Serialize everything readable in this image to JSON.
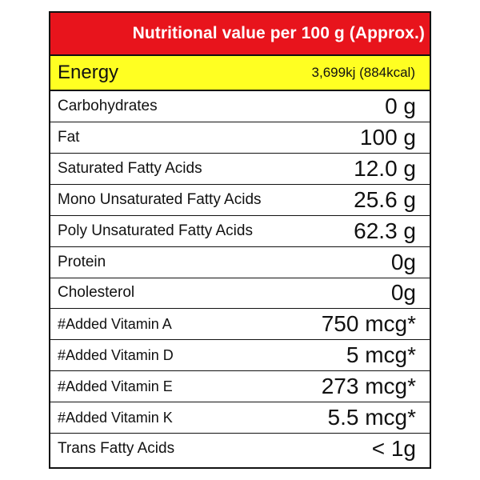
{
  "header": {
    "title": "Nutritional value per 100 g (Approx.)"
  },
  "energy": {
    "label": "Energy",
    "value": "3,699kj (884kcal)"
  },
  "rows": [
    {
      "label": "Carbohydrates",
      "value": "0 g"
    },
    {
      "label": "Fat",
      "value": "100 g"
    },
    {
      "label": "Saturated Fatty Acids",
      "value": "12.0 g"
    },
    {
      "label": "Mono Unsaturated Fatty Acids",
      "value": "25.6 g"
    },
    {
      "label": "Poly Unsaturated Fatty Acids",
      "value": "62.3 g"
    },
    {
      "label": "Protein",
      "value": "0g"
    },
    {
      "label": "Cholesterol",
      "value": "0g"
    },
    {
      "label": "#Added Vitamin A",
      "value": "750 mcg*"
    },
    {
      "label": "#Added Vitamin D",
      "value": "5 mcg*"
    },
    {
      "label": "#Added Vitamin E",
      "value": "273 mcg*"
    },
    {
      "label": "#Added Vitamin K",
      "value": "5.5 mcg*"
    },
    {
      "label": "Trans Fatty Acids",
      "value": "< 1g"
    }
  ],
  "colors": {
    "header_bg": "#e8141c",
    "energy_bg": "#ffff22",
    "border": "#111111"
  }
}
